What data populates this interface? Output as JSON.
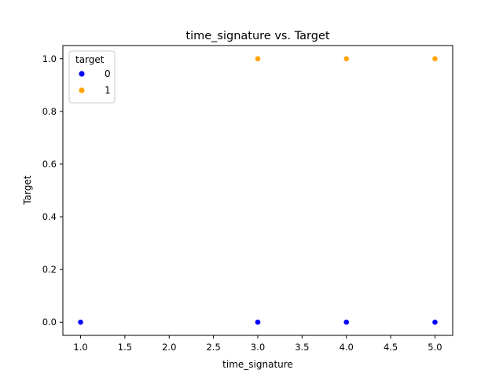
{
  "chart_data": {
    "type": "scatter",
    "title": "time_signature vs. Target",
    "xlabel": "time_signature",
    "ylabel": "Target",
    "xlim": [
      0.8,
      5.2
    ],
    "ylim": [
      -0.05,
      1.05
    ],
    "xticks": [
      1.0,
      1.5,
      2.0,
      2.5,
      3.0,
      3.5,
      4.0,
      4.5,
      5.0
    ],
    "xtick_labels": [
      "1.0",
      "1.5",
      "2.0",
      "2.5",
      "3.0",
      "3.5",
      "4.0",
      "4.5",
      "5.0"
    ],
    "yticks": [
      0.0,
      0.2,
      0.4,
      0.6,
      0.8,
      1.0
    ],
    "ytick_labels": [
      "0.0",
      "0.2",
      "0.4",
      "0.6",
      "0.8",
      "1.0"
    ],
    "grid": false,
    "legend": {
      "title": "target",
      "position": "top-left"
    },
    "series": [
      {
        "name": "0",
        "color": "#0000ff",
        "x": [
          1.0,
          3.0,
          4.0,
          5.0
        ],
        "y": [
          0,
          0,
          0,
          0
        ]
      },
      {
        "name": "1",
        "color": "#ffa500",
        "x": [
          3.0,
          4.0,
          5.0
        ],
        "y": [
          1,
          1,
          1
        ]
      }
    ]
  }
}
